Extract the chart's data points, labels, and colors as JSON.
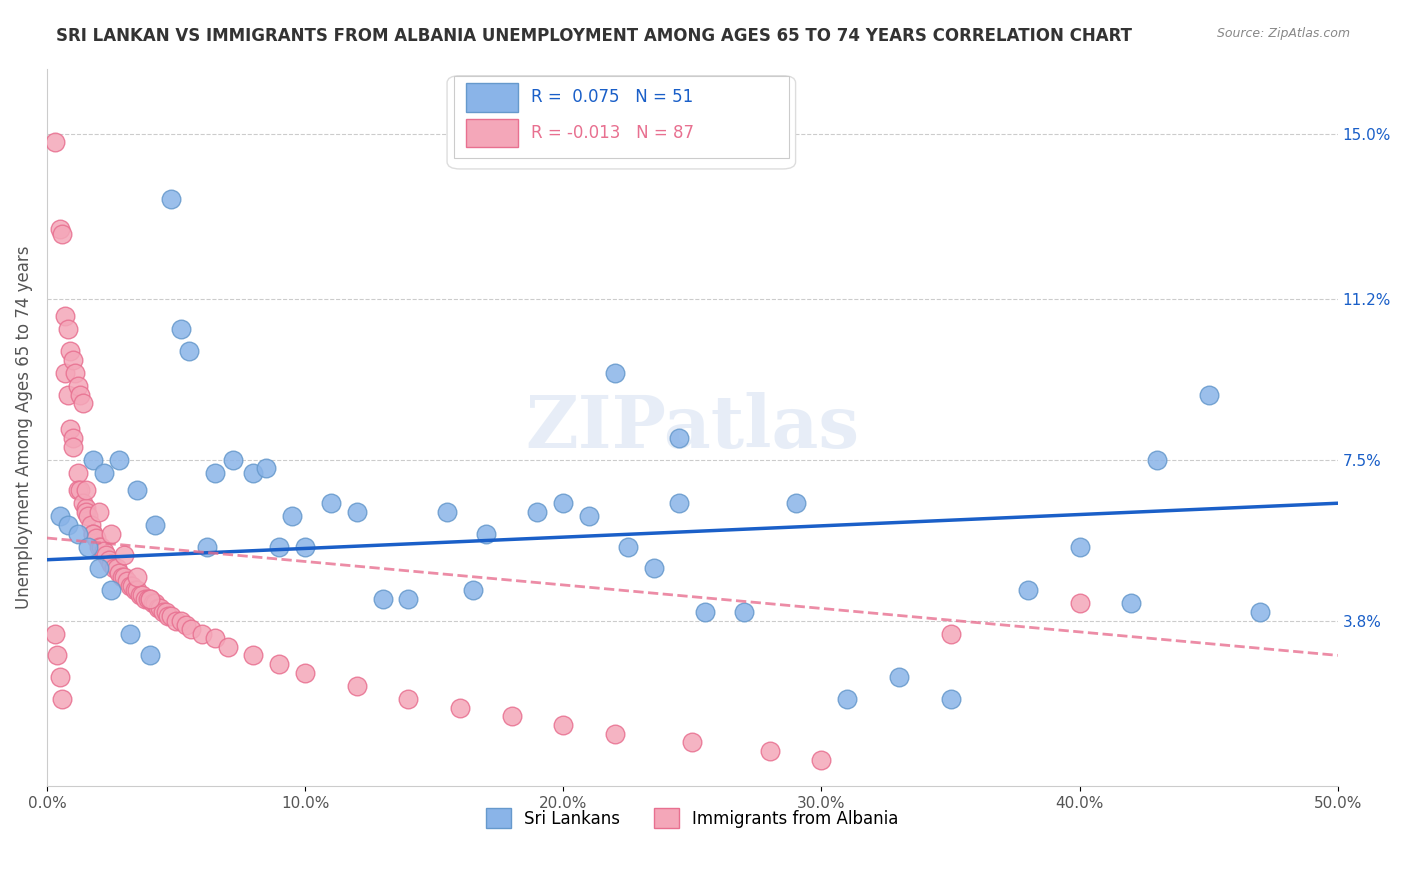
{
  "title": "SRI LANKAN VS IMMIGRANTS FROM ALBANIA UNEMPLOYMENT AMONG AGES 65 TO 74 YEARS CORRELATION CHART",
  "source": "Source: ZipAtlas.com",
  "xlabel": "",
  "ylabel": "Unemployment Among Ages 65 to 74 years",
  "xlim": [
    0,
    0.5
  ],
  "ylim": [
    0,
    0.165
  ],
  "xticks": [
    0.0,
    0.1,
    0.2,
    0.3,
    0.4,
    0.5
  ],
  "xticklabels": [
    "0.0%",
    "10.0%",
    "20.0%",
    "30.0%",
    "40.0%",
    "50.0%"
  ],
  "yticks_right": [
    0.038,
    0.075,
    0.112,
    0.15
  ],
  "yticklabels_right": [
    "3.8%",
    "7.5%",
    "11.2%",
    "15.0%"
  ],
  "sri_lankan_color": "#8ab4e8",
  "albania_color": "#f4a7b9",
  "sri_lankan_edge": "#6699cc",
  "albania_edge": "#e87090",
  "trend_blue": "#1a5fc8",
  "trend_pink": "#e87090",
  "legend_R_blue": "R =  0.075",
  "legend_N_blue": "N = 51",
  "legend_R_pink": "R = -0.013",
  "legend_N_pink": "N = 87",
  "watermark": "ZIPatlas",
  "sri_lankans_x": [
    0.018,
    0.028,
    0.022,
    0.035,
    0.042,
    0.062,
    0.048,
    0.052,
    0.055,
    0.065,
    0.072,
    0.08,
    0.085,
    0.09,
    0.095,
    0.1,
    0.11,
    0.12,
    0.13,
    0.14,
    0.155,
    0.165,
    0.17,
    0.19,
    0.2,
    0.21,
    0.225,
    0.235,
    0.245,
    0.255,
    0.27,
    0.29,
    0.31,
    0.33,
    0.35,
    0.38,
    0.4,
    0.42,
    0.43,
    0.45,
    0.47,
    0.22,
    0.245,
    0.005,
    0.008,
    0.012,
    0.016,
    0.02,
    0.025,
    0.032,
    0.04
  ],
  "sri_lankans_y": [
    0.075,
    0.075,
    0.072,
    0.068,
    0.06,
    0.055,
    0.135,
    0.105,
    0.1,
    0.072,
    0.075,
    0.072,
    0.073,
    0.055,
    0.062,
    0.055,
    0.065,
    0.063,
    0.043,
    0.043,
    0.063,
    0.045,
    0.058,
    0.063,
    0.065,
    0.062,
    0.055,
    0.05,
    0.065,
    0.04,
    0.04,
    0.065,
    0.02,
    0.025,
    0.02,
    0.045,
    0.055,
    0.042,
    0.075,
    0.09,
    0.04,
    0.095,
    0.08,
    0.062,
    0.06,
    0.058,
    0.055,
    0.05,
    0.045,
    0.035,
    0.03
  ],
  "albania_x": [
    0.003,
    0.005,
    0.006,
    0.007,
    0.008,
    0.009,
    0.01,
    0.01,
    0.012,
    0.012,
    0.013,
    0.014,
    0.015,
    0.015,
    0.016,
    0.017,
    0.018,
    0.018,
    0.019,
    0.02,
    0.021,
    0.022,
    0.023,
    0.024,
    0.025,
    0.026,
    0.027,
    0.028,
    0.029,
    0.03,
    0.031,
    0.032,
    0.033,
    0.034,
    0.035,
    0.036,
    0.037,
    0.038,
    0.039,
    0.04,
    0.041,
    0.042,
    0.043,
    0.044,
    0.045,
    0.046,
    0.047,
    0.048,
    0.05,
    0.052,
    0.054,
    0.056,
    0.06,
    0.065,
    0.07,
    0.08,
    0.09,
    0.1,
    0.12,
    0.14,
    0.16,
    0.18,
    0.2,
    0.22,
    0.25,
    0.28,
    0.3,
    0.35,
    0.4,
    0.007,
    0.008,
    0.009,
    0.01,
    0.011,
    0.012,
    0.013,
    0.014,
    0.003,
    0.004,
    0.005,
    0.006,
    0.015,
    0.02,
    0.025,
    0.03,
    0.035,
    0.04
  ],
  "albania_y": [
    0.148,
    0.128,
    0.127,
    0.095,
    0.09,
    0.082,
    0.08,
    0.078,
    0.072,
    0.068,
    0.068,
    0.065,
    0.064,
    0.063,
    0.062,
    0.06,
    0.058,
    0.058,
    0.057,
    0.055,
    0.055,
    0.054,
    0.053,
    0.052,
    0.051,
    0.05,
    0.05,
    0.049,
    0.048,
    0.048,
    0.047,
    0.046,
    0.046,
    0.045,
    0.045,
    0.044,
    0.044,
    0.043,
    0.043,
    0.043,
    0.042,
    0.042,
    0.041,
    0.041,
    0.04,
    0.04,
    0.039,
    0.039,
    0.038,
    0.038,
    0.037,
    0.036,
    0.035,
    0.034,
    0.032,
    0.03,
    0.028,
    0.026,
    0.023,
    0.02,
    0.018,
    0.016,
    0.014,
    0.012,
    0.01,
    0.008,
    0.006,
    0.035,
    0.042,
    0.108,
    0.105,
    0.1,
    0.098,
    0.095,
    0.092,
    0.09,
    0.088,
    0.035,
    0.03,
    0.025,
    0.02,
    0.068,
    0.063,
    0.058,
    0.053,
    0.048,
    0.043
  ]
}
